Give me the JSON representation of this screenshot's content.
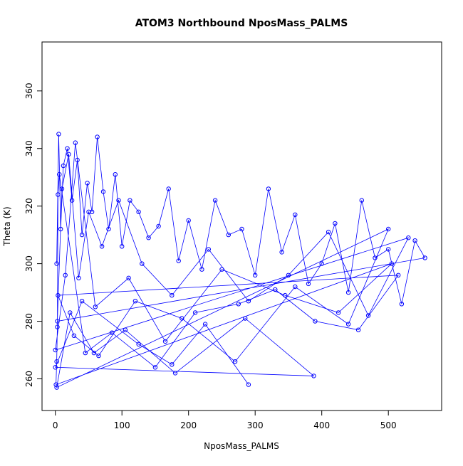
{
  "chart_data": {
    "type": "scatter",
    "title": "ATOM3 Northbound NposMass_PALMS",
    "xlabel": "NposMass_PALMS",
    "ylabel": "Theta (K)",
    "xlim": [
      -20,
      580
    ],
    "ylim": [
      249,
      377
    ],
    "x_ticks": [
      0,
      100,
      200,
      300,
      400,
      500
    ],
    "y_ticks": [
      260,
      280,
      300,
      320,
      340,
      360
    ],
    "x_tick_labels": [
      "0",
      "100",
      "200",
      "300",
      "400",
      "500"
    ],
    "y_tick_labels": [
      "260",
      "280",
      "300",
      "320",
      "340",
      "360"
    ],
    "grid": false,
    "legend": "none",
    "colors": {
      "series": "#0000ff",
      "axis": "#000000",
      "background": "#ffffff"
    },
    "series": [
      {
        "marker": "open-circle",
        "line": true,
        "x": [
          2,
          5,
          8,
          12,
          18,
          25,
          33,
          40,
          48,
          55,
          63,
          72,
          80,
          90,
          100,
          112,
          125,
          140,
          155,
          170,
          185,
          200,
          220,
          240,
          260,
          280,
          300,
          320,
          340,
          360,
          380,
          400,
          420,
          440,
          460,
          480,
          500,
          520,
          540,
          555,
          3,
          10,
          20,
          35,
          50,
          70,
          95,
          130,
          175,
          230,
          290,
          350,
          410,
          470,
          530,
          0,
          15,
          30,
          60,
          110,
          165,
          250,
          345,
          425,
          505,
          1,
          2,
          3,
          4,
          6,
          45,
          85,
          150,
          210,
          275,
          330,
          390,
          455,
          515,
          4,
          28,
          65,
          120,
          190,
          270,
          360,
          440,
          500,
          2,
          22,
          58,
          105,
          180,
          285,
          388,
          0,
          40,
          125,
          175,
          225,
          290
        ],
        "y": [
          300,
          345,
          312,
          334,
          340,
          322,
          336,
          310,
          328,
          318,
          344,
          325,
          312,
          331,
          306,
          322,
          318,
          309,
          313,
          326,
          301,
          315,
          298,
          322,
          310,
          312,
          296,
          326,
          304,
          317,
          293,
          300,
          314,
          290,
          322,
          302,
          305,
          286,
          308,
          302,
          280,
          326,
          338,
          295,
          318,
          306,
          322,
          300,
          289,
          305,
          287,
          296,
          311,
          282,
          309,
          270,
          296,
          342,
          285,
          295,
          273,
          298,
          289,
          283,
          300,
          258,
          266,
          278,
          324,
          331,
          269,
          276,
          264,
          283,
          286,
          291,
          280,
          277,
          296,
          289,
          275,
          268,
          287,
          281,
          266,
          292,
          279,
          312,
          257,
          283,
          269,
          277,
          262,
          281,
          261,
          264,
          287,
          272,
          265,
          279,
          258
        ]
      }
    ]
  }
}
